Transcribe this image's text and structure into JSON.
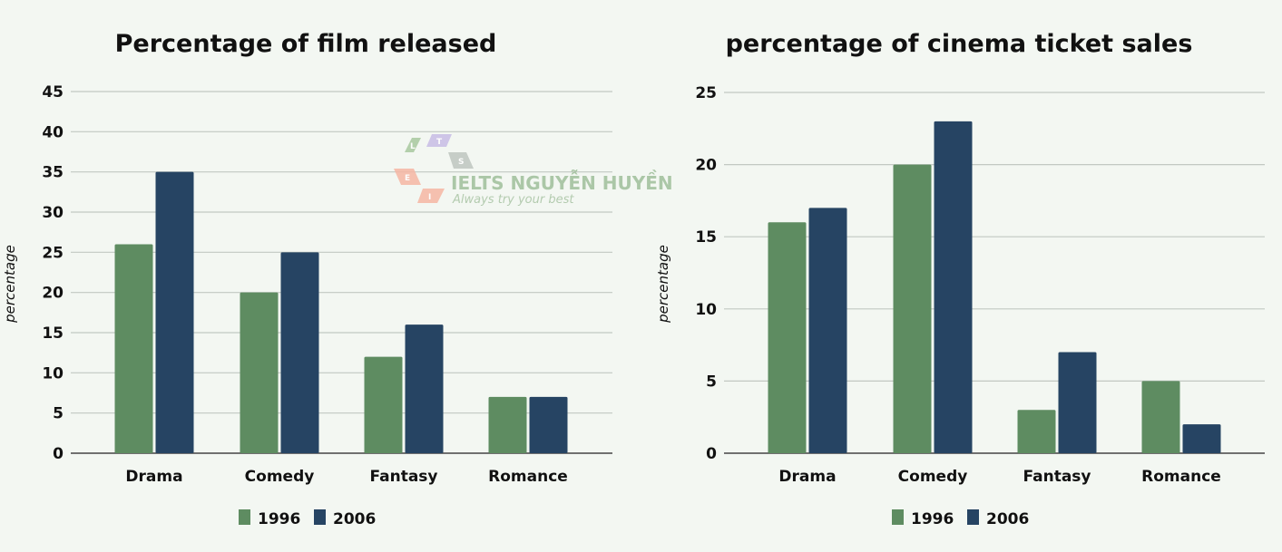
{
  "colors": {
    "s1996": "#5e8c61",
    "s2006": "#264463",
    "grid": "#c2c8c2",
    "axis": "#444444"
  },
  "watermark": {
    "text": "IELTS NGUYỄN HUYỀN",
    "tagline": "Always try your best",
    "letters": [
      "L",
      "T",
      "S",
      "E",
      "I"
    ]
  },
  "chart_data": [
    {
      "type": "bar",
      "title": "Percentage of film released",
      "ylabel": "percentage",
      "categories": [
        "Drama",
        "Comedy",
        "Fantasy",
        "Romance"
      ],
      "ylim": [
        0,
        45
      ],
      "yticks": [
        "0",
        "5",
        "10",
        "15",
        "20",
        "25",
        "30",
        "35",
        "40",
        "45"
      ],
      "grid": true,
      "legend": "bottom",
      "series": [
        {
          "name": "1996",
          "values": [
            26,
            20,
            12,
            7
          ]
        },
        {
          "name": "2006",
          "values": [
            35,
            25,
            16,
            7
          ]
        }
      ]
    },
    {
      "type": "bar",
      "title": "percentage of cinema ticket sales",
      "ylabel": "percentage",
      "categories": [
        "Drama",
        "Comedy",
        "Fantasy",
        "Romance"
      ],
      "ylim": [
        0,
        25
      ],
      "yticks": [
        "0",
        "5",
        "10",
        "15",
        "20",
        "25"
      ],
      "grid": true,
      "legend": "bottom",
      "series": [
        {
          "name": "1996",
          "values": [
            16,
            20,
            3,
            5
          ]
        },
        {
          "name": "2006",
          "values": [
            17,
            23,
            7,
            2
          ]
        }
      ]
    }
  ]
}
